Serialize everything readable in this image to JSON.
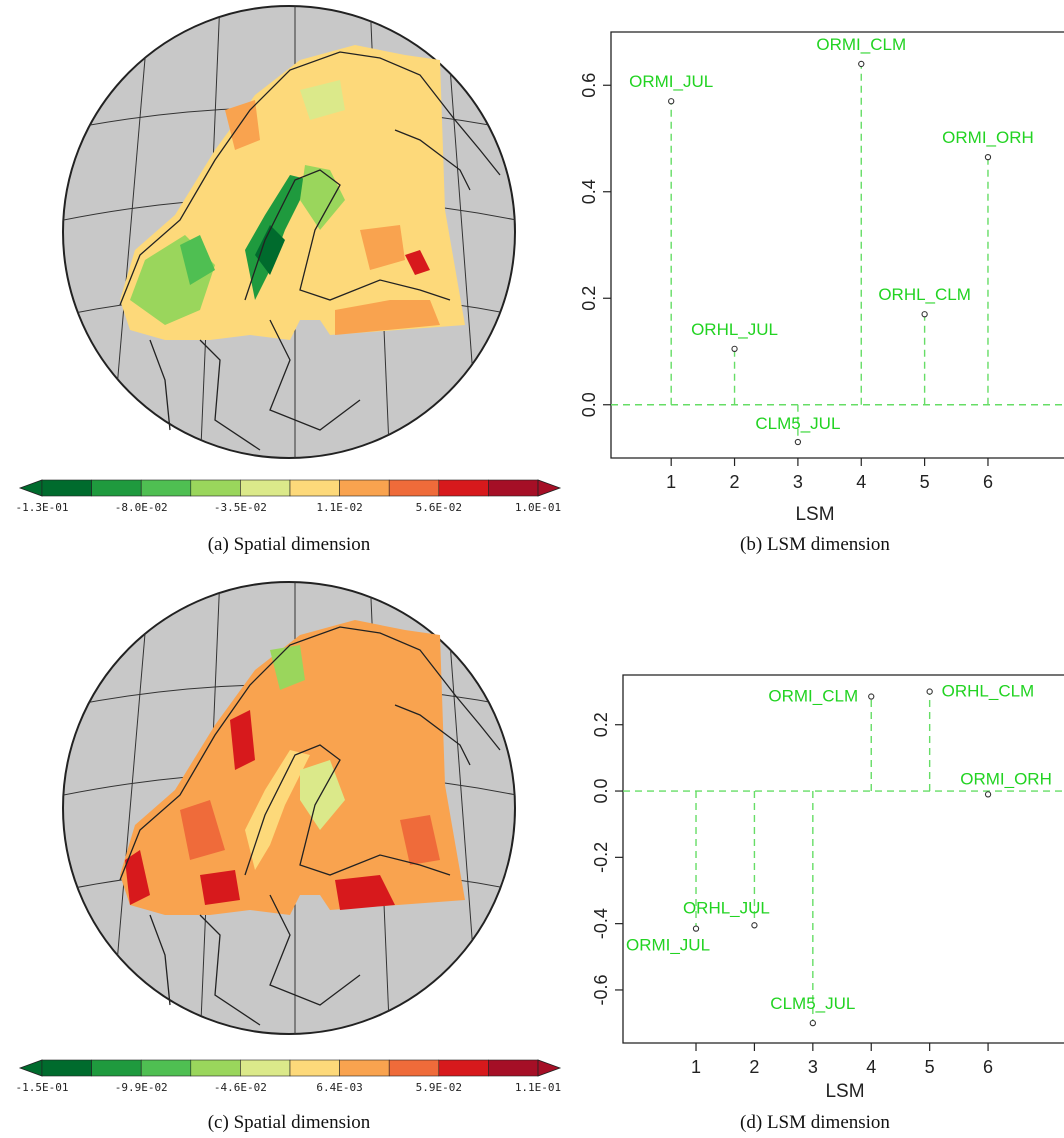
{
  "colors": {
    "label": "#22d322",
    "stem": "#66dd66",
    "ocean": "#c8c8c8",
    "palette": [
      "#006b2d",
      "#1f9a3e",
      "#4fbf52",
      "#9ad65c",
      "#dbe98a",
      "#fdd97a",
      "#f9a34f",
      "#ef6b3a",
      "#d7191c",
      "#a50f26"
    ]
  },
  "panels": {
    "a": {
      "caption": "(a) Spatial dimension",
      "colorbar_ticks": [
        "-1.3E-01",
        "-8.0E-02",
        "-3.5E-02",
        "1.1E-02",
        "5.6E-02",
        "1.0E-01"
      ]
    },
    "c": {
      "caption": "(c) Spatial dimension",
      "colorbar_ticks": [
        "-1.5E-01",
        "-9.9E-02",
        "-4.6E-02",
        "6.4E-03",
        "5.9E-02",
        "1.1E-01"
      ]
    },
    "b": {
      "caption": "(b) LSM dimension",
      "xlabel": "LSM",
      "ticks_y": [
        "0.0",
        "0.2",
        "0.4",
        "0.6"
      ],
      "ticks_x": [
        "1",
        "2",
        "3",
        "4",
        "5",
        "6"
      ]
    },
    "d": {
      "caption": "(d) LSM dimension",
      "xlabel": "LSM",
      "ticks_y": [
        "-0.6",
        "-0.4",
        "-0.2",
        "0.0",
        "0.2"
      ],
      "ticks_x": [
        "1",
        "2",
        "3",
        "4",
        "5",
        "6"
      ]
    }
  },
  "chart_data": [
    {
      "type": "scatter",
      "panel": "b",
      "xlabel": "LSM",
      "ylabel": "",
      "xlim": [
        0.05,
        7.2
      ],
      "ylim": [
        -0.1,
        0.7
      ],
      "x": [
        1,
        2,
        3,
        4,
        5,
        6
      ],
      "values": [
        0.57,
        0.105,
        -0.07,
        0.64,
        0.17,
        0.465
      ],
      "labels": [
        "ORMI_JUL",
        "ORHL_JUL",
        "CLM5_JUL",
        "ORMI_CLM",
        "ORHL_CLM",
        "ORMI_ORH"
      ],
      "grid": false
    },
    {
      "type": "scatter",
      "panel": "d",
      "xlabel": "LSM",
      "ylabel": "",
      "xlim": [
        -0.25,
        7.3
      ],
      "ylim": [
        -0.76,
        0.35
      ],
      "x": [
        1,
        2,
        3,
        4,
        5,
        6
      ],
      "values": [
        -0.415,
        -0.405,
        -0.7,
        0.285,
        0.3,
        -0.01
      ],
      "labels": [
        "ORMI_JUL",
        "ORHL_JUL",
        "CLM5_JUL",
        "ORMI_CLM",
        "ORHL_CLM",
        "ORMI_ORH"
      ],
      "grid": false
    }
  ]
}
